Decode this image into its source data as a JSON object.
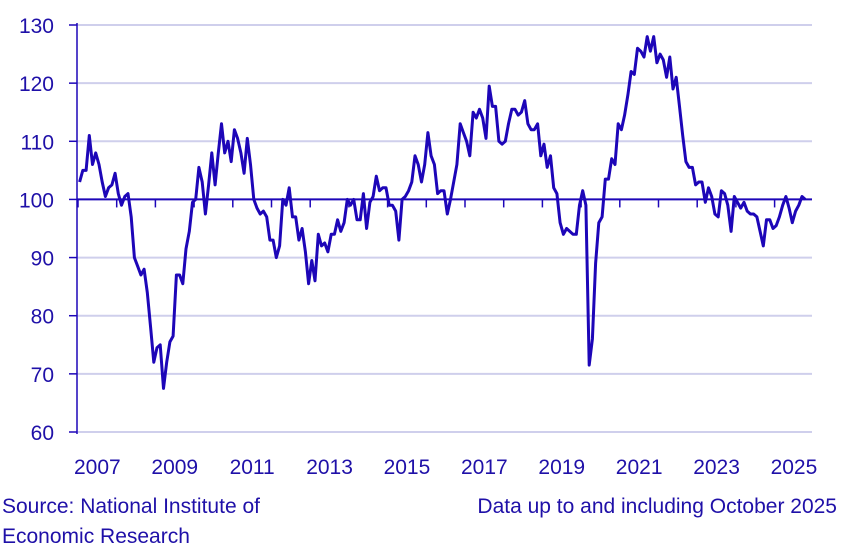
{
  "colors": {
    "line": "#1d06b8",
    "axis": "#1d06b8",
    "grid": "#cfcfec",
    "text": "#1f10a8"
  },
  "footer": {
    "source": "Source: National Institute of Economic Research",
    "note": "Data up to and including October 2025"
  },
  "chart_data": {
    "type": "line",
    "title": "",
    "xlabel": "",
    "ylabel": "",
    "ylim": [
      60,
      130
    ],
    "yticks": [
      60,
      70,
      80,
      90,
      100,
      110,
      120,
      130
    ],
    "xticklabels": [
      "2007",
      "2009",
      "2011",
      "2013",
      "2015",
      "2017",
      "2019",
      "2021",
      "2023",
      "2025"
    ],
    "grid": true,
    "reference_line": 100,
    "frequency": "monthly",
    "start": "2007-01",
    "end": "2025-10",
    "values": [
      103,
      105,
      105,
      111,
      106,
      108,
      106,
      103,
      100.5,
      102,
      102.5,
      104.5,
      101,
      99,
      100.5,
      101,
      97,
      90,
      88.5,
      87,
      88,
      84,
      78,
      72,
      74.5,
      75,
      67.5,
      72,
      75.5,
      76.5,
      87,
      87,
      85.5,
      91.5,
      94.5,
      99.5,
      100,
      105.5,
      103,
      97.5,
      102.5,
      108,
      102.5,
      108,
      113,
      108,
      110,
      106.5,
      112,
      110.5,
      108,
      104.5,
      110.5,
      106,
      100,
      98.5,
      97.5,
      98,
      97,
      93,
      93,
      90,
      92,
      100,
      99,
      102,
      97,
      97,
      93,
      95,
      91,
      85.5,
      89.5,
      86,
      94,
      92,
      92.5,
      91,
      94,
      94,
      96.5,
      94.5,
      96,
      100,
      99,
      100,
      96.5,
      96.5,
      101,
      95,
      99.5,
      100.5,
      104,
      101.5,
      102,
      102,
      99,
      99,
      98,
      93,
      100,
      100.5,
      101.5,
      103,
      107.5,
      106,
      103,
      106,
      111.5,
      107.5,
      106,
      101,
      101.5,
      101.5,
      97.5,
      100,
      103,
      106,
      113,
      111.5,
      110,
      107.5,
      115,
      114,
      115.5,
      114,
      110.5,
      119.5,
      116,
      116,
      110,
      109.5,
      110,
      113,
      115.5,
      115.5,
      114.5,
      115,
      117,
      113,
      112,
      112,
      113,
      107.5,
      109.5,
      105.5,
      107.5,
      102,
      101,
      96,
      94,
      95,
      94.5,
      94,
      94,
      99,
      101.5,
      99,
      71.5,
      76,
      89,
      96,
      97,
      103.5,
      103.5,
      107,
      106,
      113,
      112,
      114.5,
      118,
      122,
      121.5,
      126,
      125.5,
      124.5,
      128,
      125.5,
      128,
      123.5,
      125,
      124,
      121,
      124.5,
      119,
      121,
      116,
      111,
      106.5,
      105.5,
      105.5,
      102.5,
      103,
      103,
      99.5,
      102,
      100.5,
      97.5,
      97,
      101.5,
      101,
      99,
      94.5,
      100.5,
      99.5,
      98.5,
      99.5,
      98,
      97.5,
      97.5,
      97,
      94.5,
      92,
      96.5,
      96.5,
      95,
      95.5,
      97,
      99,
      100.5,
      98.5,
      96,
      98,
      99,
      100.5,
      100
    ]
  }
}
